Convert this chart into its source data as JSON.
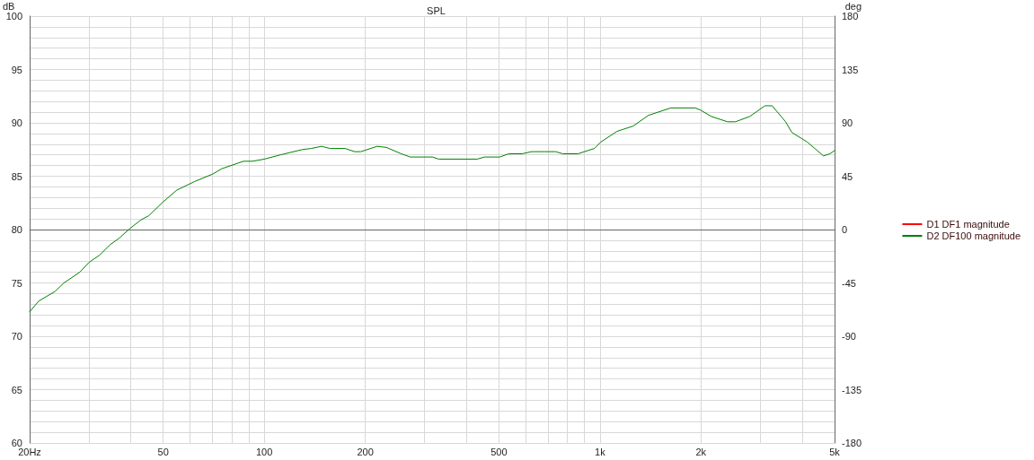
{
  "chart_data": {
    "type": "line",
    "title": "SPL",
    "ylabel": "dB",
    "y2label": "deg",
    "x": [
      20,
      21.3,
      23.8,
      25.3,
      28.2,
      30,
      32.3,
      34.8,
      37,
      39.8,
      42.9,
      45.3,
      50,
      54.9,
      62,
      70.2,
      74.7,
      86.7,
      92.2,
      100,
      111.7,
      130,
      138,
      148,
      157,
      174,
      186,
      194,
      217,
      231,
      256,
      272,
      317,
      331,
      431,
      453,
      503,
      535,
      586,
      626,
      738,
      775,
      860,
      963,
      1006,
      1124,
      1256,
      1394,
      1627,
      1921,
      1993,
      2147,
      2399,
      2533,
      2796,
      3101,
      3258,
      3574,
      3730,
      4146,
      4634,
      4839,
      5000
    ],
    "series": [
      {
        "name": "D1 DF1 magnitude",
        "color": "#ff0000",
        "values": [
          null,
          null,
          null,
          null,
          null,
          null,
          null,
          null,
          null,
          null,
          null,
          null,
          null,
          null,
          null,
          null,
          null,
          null,
          null,
          null,
          null,
          null,
          null,
          null,
          null,
          null,
          null,
          null,
          null,
          null,
          null,
          null,
          null,
          null,
          null,
          null,
          null,
          null,
          null,
          null,
          null,
          null,
          null,
          null,
          null,
          null,
          null,
          null,
          null,
          null,
          null,
          null,
          null,
          null,
          null,
          null,
          null,
          null,
          null,
          null,
          null,
          null,
          null
        ]
      },
      {
        "name": "D2 DF100 magnitude",
        "color": "#008000",
        "values": [
          72.3,
          73.3,
          74.2,
          75.0,
          76.0,
          76.9,
          77.6,
          78.6,
          79.2,
          80.1,
          80.9,
          81.3,
          82.6,
          83.7,
          84.5,
          85.2,
          85.7,
          86.4,
          86.4,
          86.6,
          87.0,
          87.5,
          87.6,
          87.8,
          87.6,
          87.6,
          87.3,
          87.3,
          87.8,
          87.7,
          87.1,
          86.8,
          86.8,
          86.6,
          86.6,
          86.8,
          86.8,
          87.1,
          87.1,
          87.3,
          87.3,
          87.1,
          87.1,
          87.6,
          88.2,
          89.2,
          89.7,
          90.7,
          91.4,
          91.4,
          91.2,
          90.6,
          90.1,
          90.1,
          90.6,
          91.6,
          91.6,
          90.1,
          89.1,
          88.2,
          86.9,
          87.1,
          87.4
        ]
      }
    ],
    "log": "x",
    "xlim": [
      20,
      5000
    ],
    "xticks": [
      {
        "value": 20,
        "label": "20Hz"
      },
      {
        "value": 30,
        "label": null
      },
      {
        "value": 40,
        "label": null
      },
      50,
      {
        "value": 60,
        "label": null
      },
      {
        "value": 70,
        "label": null
      },
      {
        "value": 80,
        "label": null
      },
      {
        "value": 90,
        "label": null
      },
      100,
      200,
      {
        "value": 300,
        "label": null
      },
      {
        "value": 400,
        "label": null
      },
      500,
      {
        "value": 600,
        "label": null
      },
      {
        "value": 700,
        "label": null
      },
      {
        "value": 800,
        "label": null
      },
      {
        "value": 900,
        "label": null
      },
      {
        "value": 1000,
        "label": "1k"
      },
      {
        "value": 2000,
        "label": "2k"
      },
      {
        "value": 3000,
        "label": null
      },
      {
        "value": 4000,
        "label": null
      },
      {
        "value": 5000,
        "label": "5k"
      }
    ],
    "ylim": [
      60,
      100
    ],
    "yticks": [
      60,
      {
        "value": 61,
        "label": null
      },
      {
        "value": 62,
        "label": null
      },
      {
        "value": 63,
        "label": null
      },
      {
        "value": 64,
        "label": null
      },
      65,
      {
        "value": 66,
        "label": null
      },
      {
        "value": 67,
        "label": null
      },
      {
        "value": 68,
        "label": null
      },
      {
        "value": 69,
        "label": null
      },
      70,
      {
        "value": 71,
        "label": null
      },
      {
        "value": 72,
        "label": null
      },
      {
        "value": 73,
        "label": null
      },
      {
        "value": 74,
        "label": null
      },
      75,
      {
        "value": 76,
        "label": null
      },
      {
        "value": 77,
        "label": null
      },
      {
        "value": 78,
        "label": null
      },
      {
        "value": 79,
        "label": null
      },
      80,
      {
        "value": 81,
        "label": null
      },
      {
        "value": 82,
        "label": null
      },
      {
        "value": 83,
        "label": null
      },
      {
        "value": 84,
        "label": null
      },
      85,
      {
        "value": 86,
        "label": null
      },
      {
        "value": 87,
        "label": null
      },
      {
        "value": 88,
        "label": null
      },
      {
        "value": 89,
        "label": null
      },
      90,
      {
        "value": 91,
        "label": null
      },
      {
        "value": 92,
        "label": null
      },
      {
        "value": 93,
        "label": null
      },
      {
        "value": 94,
        "label": null
      },
      95,
      {
        "value": 96,
        "label": null
      },
      {
        "value": 97,
        "label": null
      },
      {
        "value": 98,
        "label": null
      },
      {
        "value": 99,
        "label": null
      },
      100
    ],
    "y2lim": [
      -180,
      180
    ],
    "y2ticks": [
      -180,
      -135,
      -90,
      -45,
      0,
      45,
      90,
      135,
      180
    ],
    "grid": true,
    "legend": "right",
    "marker": "none",
    "line_style": "solid"
  }
}
